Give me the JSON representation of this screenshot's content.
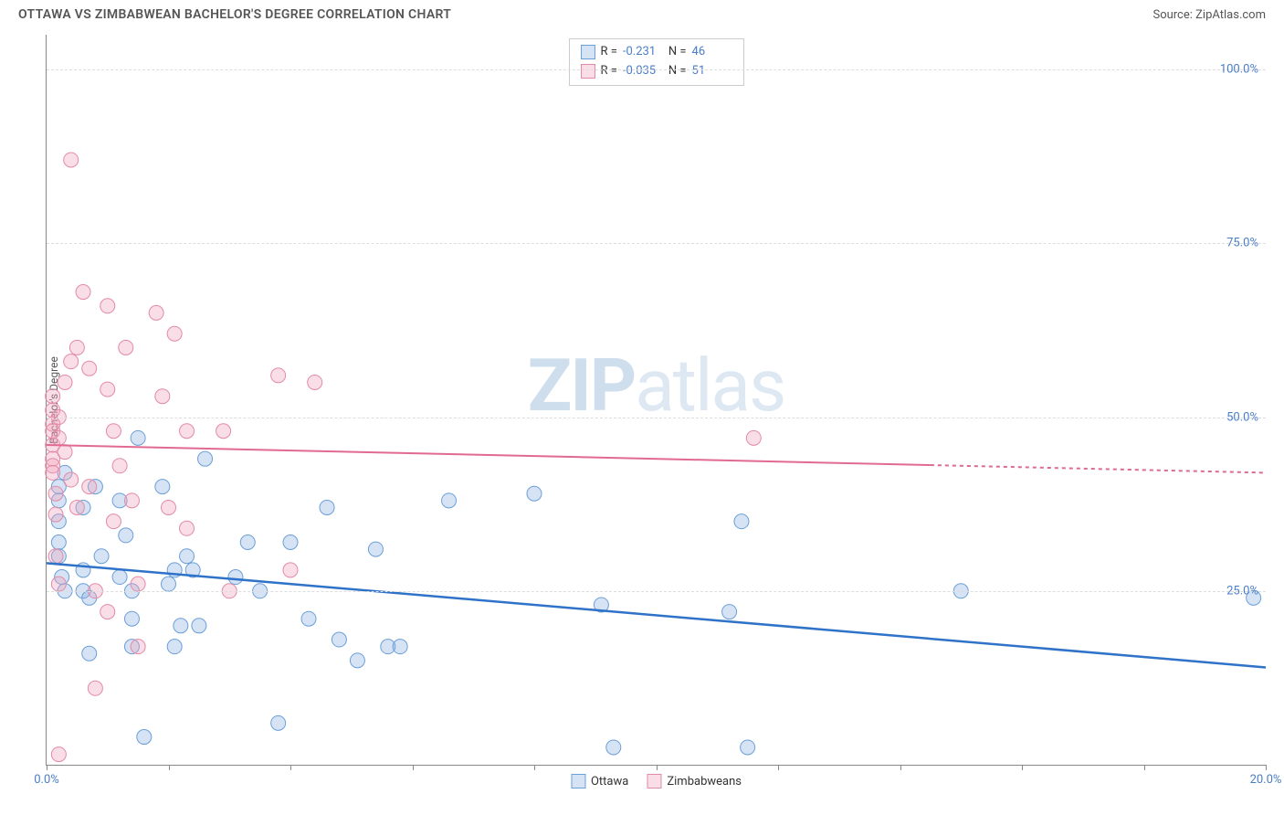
{
  "header": {
    "title": "OTTAWA VS ZIMBABWEAN BACHELOR'S DEGREE CORRELATION CHART",
    "source": "Source: ZipAtlas.com"
  },
  "watermark": {
    "prefix": "ZIP",
    "suffix": "atlas"
  },
  "chart": {
    "type": "scatter",
    "ylabel": "Bachelor's Degree",
    "background_color": "#ffffff",
    "grid_color": "#dddddd",
    "axis_color": "#888888",
    "xlim": [
      0,
      20
    ],
    "ylim": [
      0,
      105
    ],
    "yticks": [
      {
        "v": 25,
        "label": "25.0%"
      },
      {
        "v": 50,
        "label": "50.0%"
      },
      {
        "v": 75,
        "label": "75.0%"
      },
      {
        "v": 100,
        "label": "100.0%"
      }
    ],
    "xticks": [
      0,
      2,
      4,
      6,
      8,
      10,
      12,
      14,
      16,
      18,
      20
    ],
    "xtick_labels": [
      {
        "v": 0,
        "label": "0.0%"
      },
      {
        "v": 20,
        "label": "20.0%"
      }
    ],
    "marker_radius": 8,
    "marker_stroke_width": 1,
    "series": [
      {
        "name": "Ottawa",
        "color_fill": "rgba(136,175,226,0.35)",
        "color_stroke": "#6b9fd8",
        "trend_color": "#2f73c9",
        "trend_width": 2.5,
        "trend": {
          "y_at_xmin": 29,
          "y_at_xmax": 14
        },
        "points": [
          [
            0.2,
            40
          ],
          [
            0.2,
            38
          ],
          [
            0.2,
            35
          ],
          [
            0.2,
            32
          ],
          [
            0.2,
            30
          ],
          [
            0.25,
            27
          ],
          [
            0.3,
            42
          ],
          [
            0.3,
            25
          ],
          [
            0.6,
            37
          ],
          [
            0.6,
            28
          ],
          [
            0.6,
            25
          ],
          [
            0.7,
            16
          ],
          [
            0.7,
            24
          ],
          [
            0.8,
            40
          ],
          [
            0.9,
            30
          ],
          [
            1.2,
            38
          ],
          [
            1.2,
            27
          ],
          [
            1.3,
            33
          ],
          [
            1.4,
            25
          ],
          [
            1.4,
            21
          ],
          [
            1.4,
            17
          ],
          [
            1.5,
            47
          ],
          [
            1.6,
            4
          ],
          [
            1.9,
            40
          ],
          [
            2.0,
            26
          ],
          [
            2.1,
            28
          ],
          [
            2.1,
            17
          ],
          [
            2.2,
            20
          ],
          [
            2.3,
            30
          ],
          [
            2.4,
            28
          ],
          [
            2.5,
            20
          ],
          [
            2.6,
            44
          ],
          [
            3.1,
            27
          ],
          [
            3.3,
            32
          ],
          [
            3.5,
            25
          ],
          [
            3.8,
            6
          ],
          [
            4.0,
            32
          ],
          [
            4.3,
            21
          ],
          [
            4.6,
            37
          ],
          [
            4.8,
            18
          ],
          [
            5.1,
            15
          ],
          [
            5.4,
            31
          ],
          [
            5.6,
            17
          ],
          [
            5.8,
            17
          ],
          [
            6.6,
            38
          ],
          [
            8.0,
            39
          ],
          [
            9.1,
            23
          ],
          [
            9.3,
            2.5
          ],
          [
            11.2,
            22
          ],
          [
            11.4,
            35
          ],
          [
            11.5,
            2.5
          ],
          [
            15.0,
            25
          ],
          [
            19.8,
            24
          ]
        ]
      },
      {
        "name": "Zimbabweans",
        "color_fill": "rgba(240,160,185,0.35)",
        "color_stroke": "#e38aa6",
        "trend_color": "#e06a93",
        "trend_width": 2,
        "trend": {
          "y_at_xmin": 46,
          "y_at_xmax": 42,
          "dash_after_x": 14.5
        },
        "points": [
          [
            0.1,
            53
          ],
          [
            0.1,
            51
          ],
          [
            0.1,
            49
          ],
          [
            0.1,
            48
          ],
          [
            0.1,
            46
          ],
          [
            0.1,
            44
          ],
          [
            0.1,
            43
          ],
          [
            0.1,
            42
          ],
          [
            0.15,
            39
          ],
          [
            0.15,
            36
          ],
          [
            0.15,
            30
          ],
          [
            0.2,
            50
          ],
          [
            0.2,
            47
          ],
          [
            0.2,
            26
          ],
          [
            0.2,
            1.5
          ],
          [
            0.3,
            55
          ],
          [
            0.3,
            45
          ],
          [
            0.4,
            87
          ],
          [
            0.4,
            58
          ],
          [
            0.4,
            41
          ],
          [
            0.5,
            60
          ],
          [
            0.5,
            37
          ],
          [
            0.6,
            68
          ],
          [
            0.7,
            57
          ],
          [
            0.7,
            40
          ],
          [
            0.8,
            25
          ],
          [
            0.8,
            11
          ],
          [
            1.0,
            54
          ],
          [
            1.0,
            66
          ],
          [
            1.0,
            22
          ],
          [
            1.1,
            48
          ],
          [
            1.1,
            35
          ],
          [
            1.2,
            43
          ],
          [
            1.3,
            60
          ],
          [
            1.4,
            38
          ],
          [
            1.5,
            26
          ],
          [
            1.5,
            17
          ],
          [
            1.8,
            65
          ],
          [
            1.9,
            53
          ],
          [
            2.0,
            37
          ],
          [
            2.1,
            62
          ],
          [
            2.3,
            48
          ],
          [
            2.3,
            34
          ],
          [
            2.9,
            48
          ],
          [
            3.0,
            25
          ],
          [
            3.8,
            56
          ],
          [
            4.0,
            28
          ],
          [
            4.4,
            55
          ],
          [
            11.6,
            47
          ]
        ]
      }
    ],
    "stats": [
      {
        "series": 0,
        "R_label": "R =",
        "R": "-0.231",
        "N_label": "N =",
        "N": "46"
      },
      {
        "series": 1,
        "R_label": "R =",
        "R": "-0.035",
        "N_label": "N =",
        "N": "51"
      }
    ],
    "legend": [
      {
        "series": 0,
        "label": "Ottawa"
      },
      {
        "series": 1,
        "label": "Zimbabweans"
      }
    ]
  }
}
